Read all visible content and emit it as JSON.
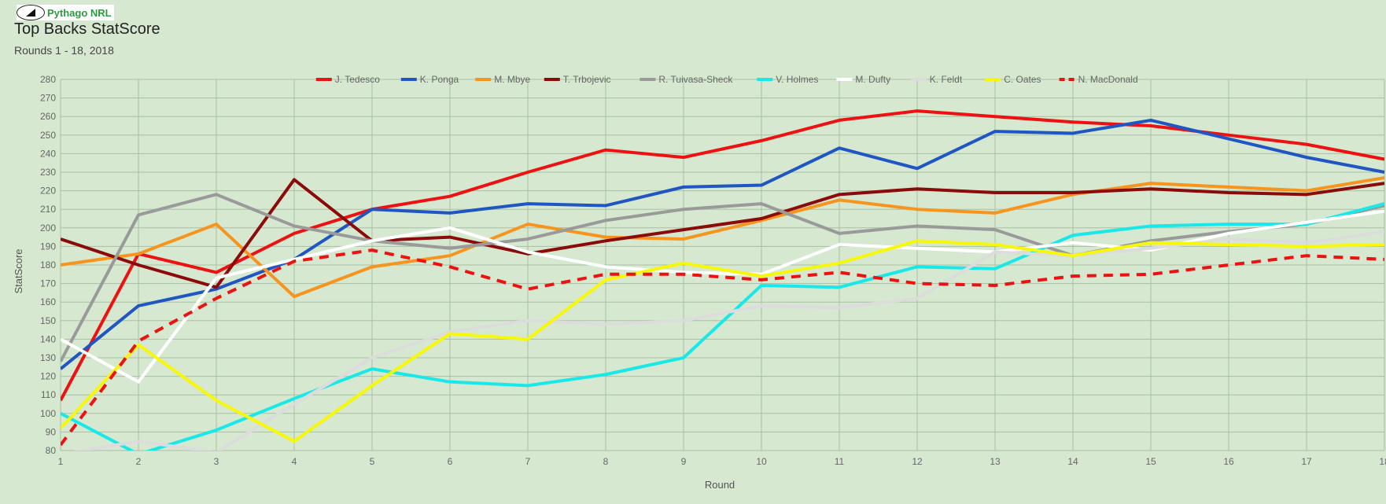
{
  "logo": {
    "text": "Pythago NRL"
  },
  "header": {
    "title": "Top Backs StatScore",
    "subtitle": "Rounds 1 - 18, 2018"
  },
  "chart_data": {
    "type": "line",
    "title": "Top Backs StatScore",
    "subtitle": "Rounds 1 - 18, 2018",
    "xlabel": "Round",
    "ylabel": "StatScore",
    "xlim": [
      1,
      18
    ],
    "ylim": [
      80,
      280
    ],
    "x": [
      1,
      2,
      3,
      4,
      5,
      6,
      7,
      8,
      9,
      10,
      11,
      12,
      13,
      14,
      15,
      16,
      17,
      18
    ],
    "y_ticks": [
      80,
      90,
      100,
      110,
      120,
      130,
      140,
      150,
      160,
      170,
      180,
      190,
      200,
      210,
      220,
      230,
      240,
      250,
      260,
      270,
      280
    ],
    "grid": true,
    "legend_position": "top",
    "series": [
      {
        "name": "J. Tedesco",
        "color": "#ee1111",
        "dash": false,
        "values": [
          107,
          186,
          176,
          197,
          210,
          217,
          230,
          242,
          238,
          247,
          258,
          263,
          260,
          257,
          255,
          250,
          245,
          237
        ]
      },
      {
        "name": "K. Ponga",
        "color": "#1f56c4",
        "dash": false,
        "values": [
          124,
          158,
          167,
          183,
          210,
          208,
          213,
          212,
          222,
          223,
          243,
          232,
          252,
          251,
          258,
          248,
          238,
          230
        ]
      },
      {
        "name": "M. Mbye",
        "color": "#f7941d",
        "dash": false,
        "values": [
          180,
          186,
          202,
          163,
          179,
          185,
          202,
          195,
          194,
          204,
          215,
          210,
          208,
          218,
          224,
          222,
          220,
          227
        ]
      },
      {
        "name": "T. Trbojevic",
        "color": "#8b0a0a",
        "dash": false,
        "values": [
          194,
          180,
          168,
          226,
          193,
          195,
          186,
          193,
          199,
          205,
          218,
          221,
          219,
          219,
          221,
          219,
          218,
          224
        ]
      },
      {
        "name": "R. Tuivasa-Sheck",
        "color": "#9a9a9a",
        "dash": false,
        "values": [
          128,
          207,
          218,
          201,
          193,
          189,
          194,
          204,
          210,
          213,
          197,
          201,
          199,
          185,
          193,
          198,
          202,
          212
        ]
      },
      {
        "name": "V. Holmes",
        "color": "#19e8e8",
        "dash": false,
        "values": [
          100,
          78,
          91,
          108,
          124,
          117,
          115,
          121,
          130,
          169,
          168,
          179,
          178,
          196,
          201,
          202,
          202,
          213
        ]
      },
      {
        "name": "M. Dufty",
        "color": "#ffffff",
        "dash": false,
        "values": [
          140,
          117,
          173,
          183,
          193,
          200,
          187,
          179,
          176,
          175,
          191,
          189,
          187,
          192,
          188,
          197,
          203,
          209
        ]
      },
      {
        "name": "K. Feldt",
        "color": "#dcdcdc",
        "dash": false,
        "values": [
          78,
          85,
          79,
          105,
          130,
          144,
          150,
          148,
          150,
          158,
          157,
          162,
          187,
          185,
          189,
          194,
          192,
          198
        ]
      },
      {
        "name": "C. Oates",
        "color": "#f7f70a",
        "dash": false,
        "values": [
          92,
          137,
          107,
          85,
          115,
          143,
          140,
          172,
          181,
          174,
          181,
          193,
          191,
          185,
          192,
          191,
          190,
          191
        ]
      },
      {
        "name": "N. MacDonald",
        "color": "#ee1111",
        "dash": true,
        "values": [
          83,
          139,
          162,
          182,
          188,
          179,
          167,
          175,
          175,
          172,
          176,
          170,
          169,
          174,
          175,
          180,
          185,
          183
        ]
      }
    ]
  }
}
